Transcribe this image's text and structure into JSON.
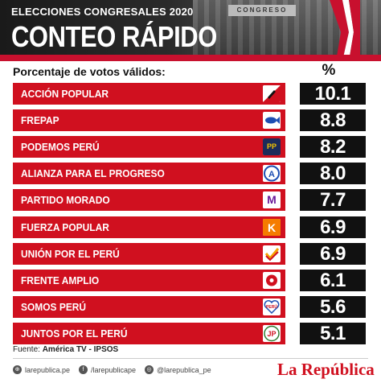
{
  "header": {
    "subtitle": "ELECCIONES CONGRESALES 2020",
    "title": "CONTEO RÁPIDO",
    "photo_sign": "CONGRESO"
  },
  "labels": {
    "column_left": "Porcentaje de votos válidos:",
    "column_right": "%"
  },
  "chart_data": {
    "type": "bar",
    "title": "CONTEO RÁPIDO",
    "subtitle": "ELECCIONES CONGRESALES 2020",
    "ylabel": "Porcentaje de votos válidos:",
    "unit": "%",
    "categories": [
      "ACCIÓN POPULAR",
      "FREPAP",
      "PODEMOS PERÚ",
      "ALIANZA PARA EL PROGRESO",
      "PARTIDO MORADO",
      "FUERZA POPULAR",
      "UNIÓN POR EL PERÚ",
      "FRENTE AMPLIO",
      "SOMOS PERÚ",
      "JUNTOS POR EL PERÚ"
    ],
    "values": [
      10.1,
      8.8,
      8.2,
      8.0,
      7.7,
      6.9,
      6.9,
      6.1,
      5.6,
      5.1
    ],
    "value_labels": [
      "10.1",
      "8.8",
      "8.2",
      "8.0",
      "7.7",
      "6.9",
      "6.9",
      "6.1",
      "5.6",
      "5.1"
    ],
    "logo_icons": [
      "accion-popular-icon",
      "frepap-fish-icon",
      "podemos-icon",
      "app-icon",
      "morado-icon",
      "fuerza-popular-icon",
      "upp-check-icon",
      "frente-amplio-flower-icon",
      "somos-peru-heart-icon",
      "jpp-icon"
    ],
    "bar_color": "#d0101f",
    "value_box_color": "#111111"
  },
  "footer": {
    "source_prefix": "Fuente: ",
    "source": "América TV - IPSOS",
    "social": [
      "larepublica.pe",
      "/larepublicape",
      "@larepublica_pe"
    ],
    "brand": "La República"
  },
  "colors": {
    "accent": "#c8102e",
    "header_dark": "#1a1a1a"
  }
}
